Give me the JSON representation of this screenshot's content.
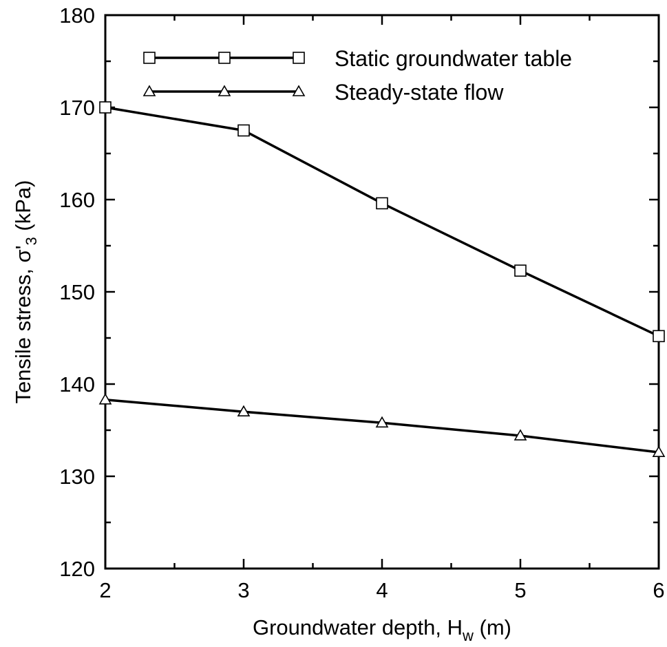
{
  "chart_data": {
    "type": "line",
    "x": [
      2,
      3,
      4,
      5,
      6
    ],
    "xlim": [
      2,
      6
    ],
    "ylim": [
      120,
      180
    ],
    "x_ticks": [
      "2",
      "3",
      "4",
      "5",
      "6"
    ],
    "y_ticks": [
      "120",
      "130",
      "140",
      "150",
      "160",
      "170",
      "180"
    ],
    "xlabel": {
      "main": "Groundwater depth, H",
      "sub": "w",
      "tail": " (m)"
    },
    "ylabel": {
      "main": "Tensile stress, σ'",
      "sub": "3",
      "tail": " (kPa)"
    },
    "grid": false,
    "legend_position": "top",
    "series": [
      {
        "name": "Static groundwater table",
        "marker": "square",
        "values": [
          170.0,
          167.5,
          159.6,
          152.3,
          145.2
        ]
      },
      {
        "name": "Steady-state flow",
        "marker": "triangle",
        "values": [
          138.3,
          137.0,
          135.8,
          134.4,
          132.6
        ]
      }
    ]
  }
}
